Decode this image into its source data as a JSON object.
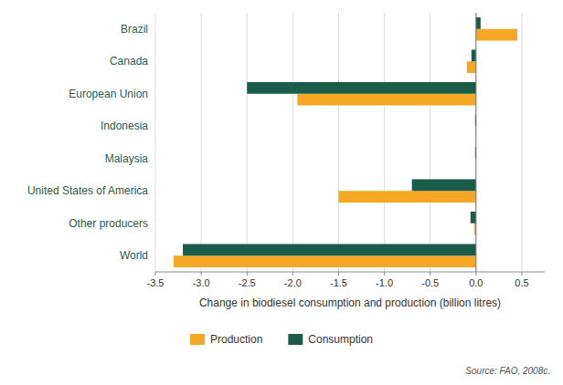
{
  "chart_data": {
    "type": "bar",
    "orientation": "horizontal",
    "categories": [
      "World",
      "Other producers",
      "United States of America",
      "Malaysia",
      "Indonesia",
      "European Union",
      "Canada",
      "Brazil"
    ],
    "series": [
      {
        "name": "Production",
        "color": "#f5a623",
        "values": [
          -3.3,
          -0.02,
          -1.5,
          0.0,
          0.0,
          -1.95,
          -0.1,
          0.45
        ]
      },
      {
        "name": "Consumption",
        "color": "#1a5c4a",
        "values": [
          -3.2,
          -0.06,
          -0.7,
          -0.01,
          -0.01,
          -2.5,
          -0.05,
          0.05
        ]
      }
    ],
    "xlabel": "Change in biodiesel consumption and production (billion litres)",
    "xlim": [
      -3.5,
      0.75
    ],
    "xticks": [
      -3.5,
      {
        "value": -3.0,
        "label": "-3.0"
      },
      -2.5,
      {
        "value": -2.0,
        "label": "-2.0"
      },
      -1.5,
      {
        "value": -1.0,
        "label": "-1.0"
      },
      -0.5,
      {
        "value": 0.0,
        "label": "0.0"
      },
      0.5
    ],
    "grid": true,
    "legend": "bottom",
    "source": "Source: FAO, 2008c."
  }
}
